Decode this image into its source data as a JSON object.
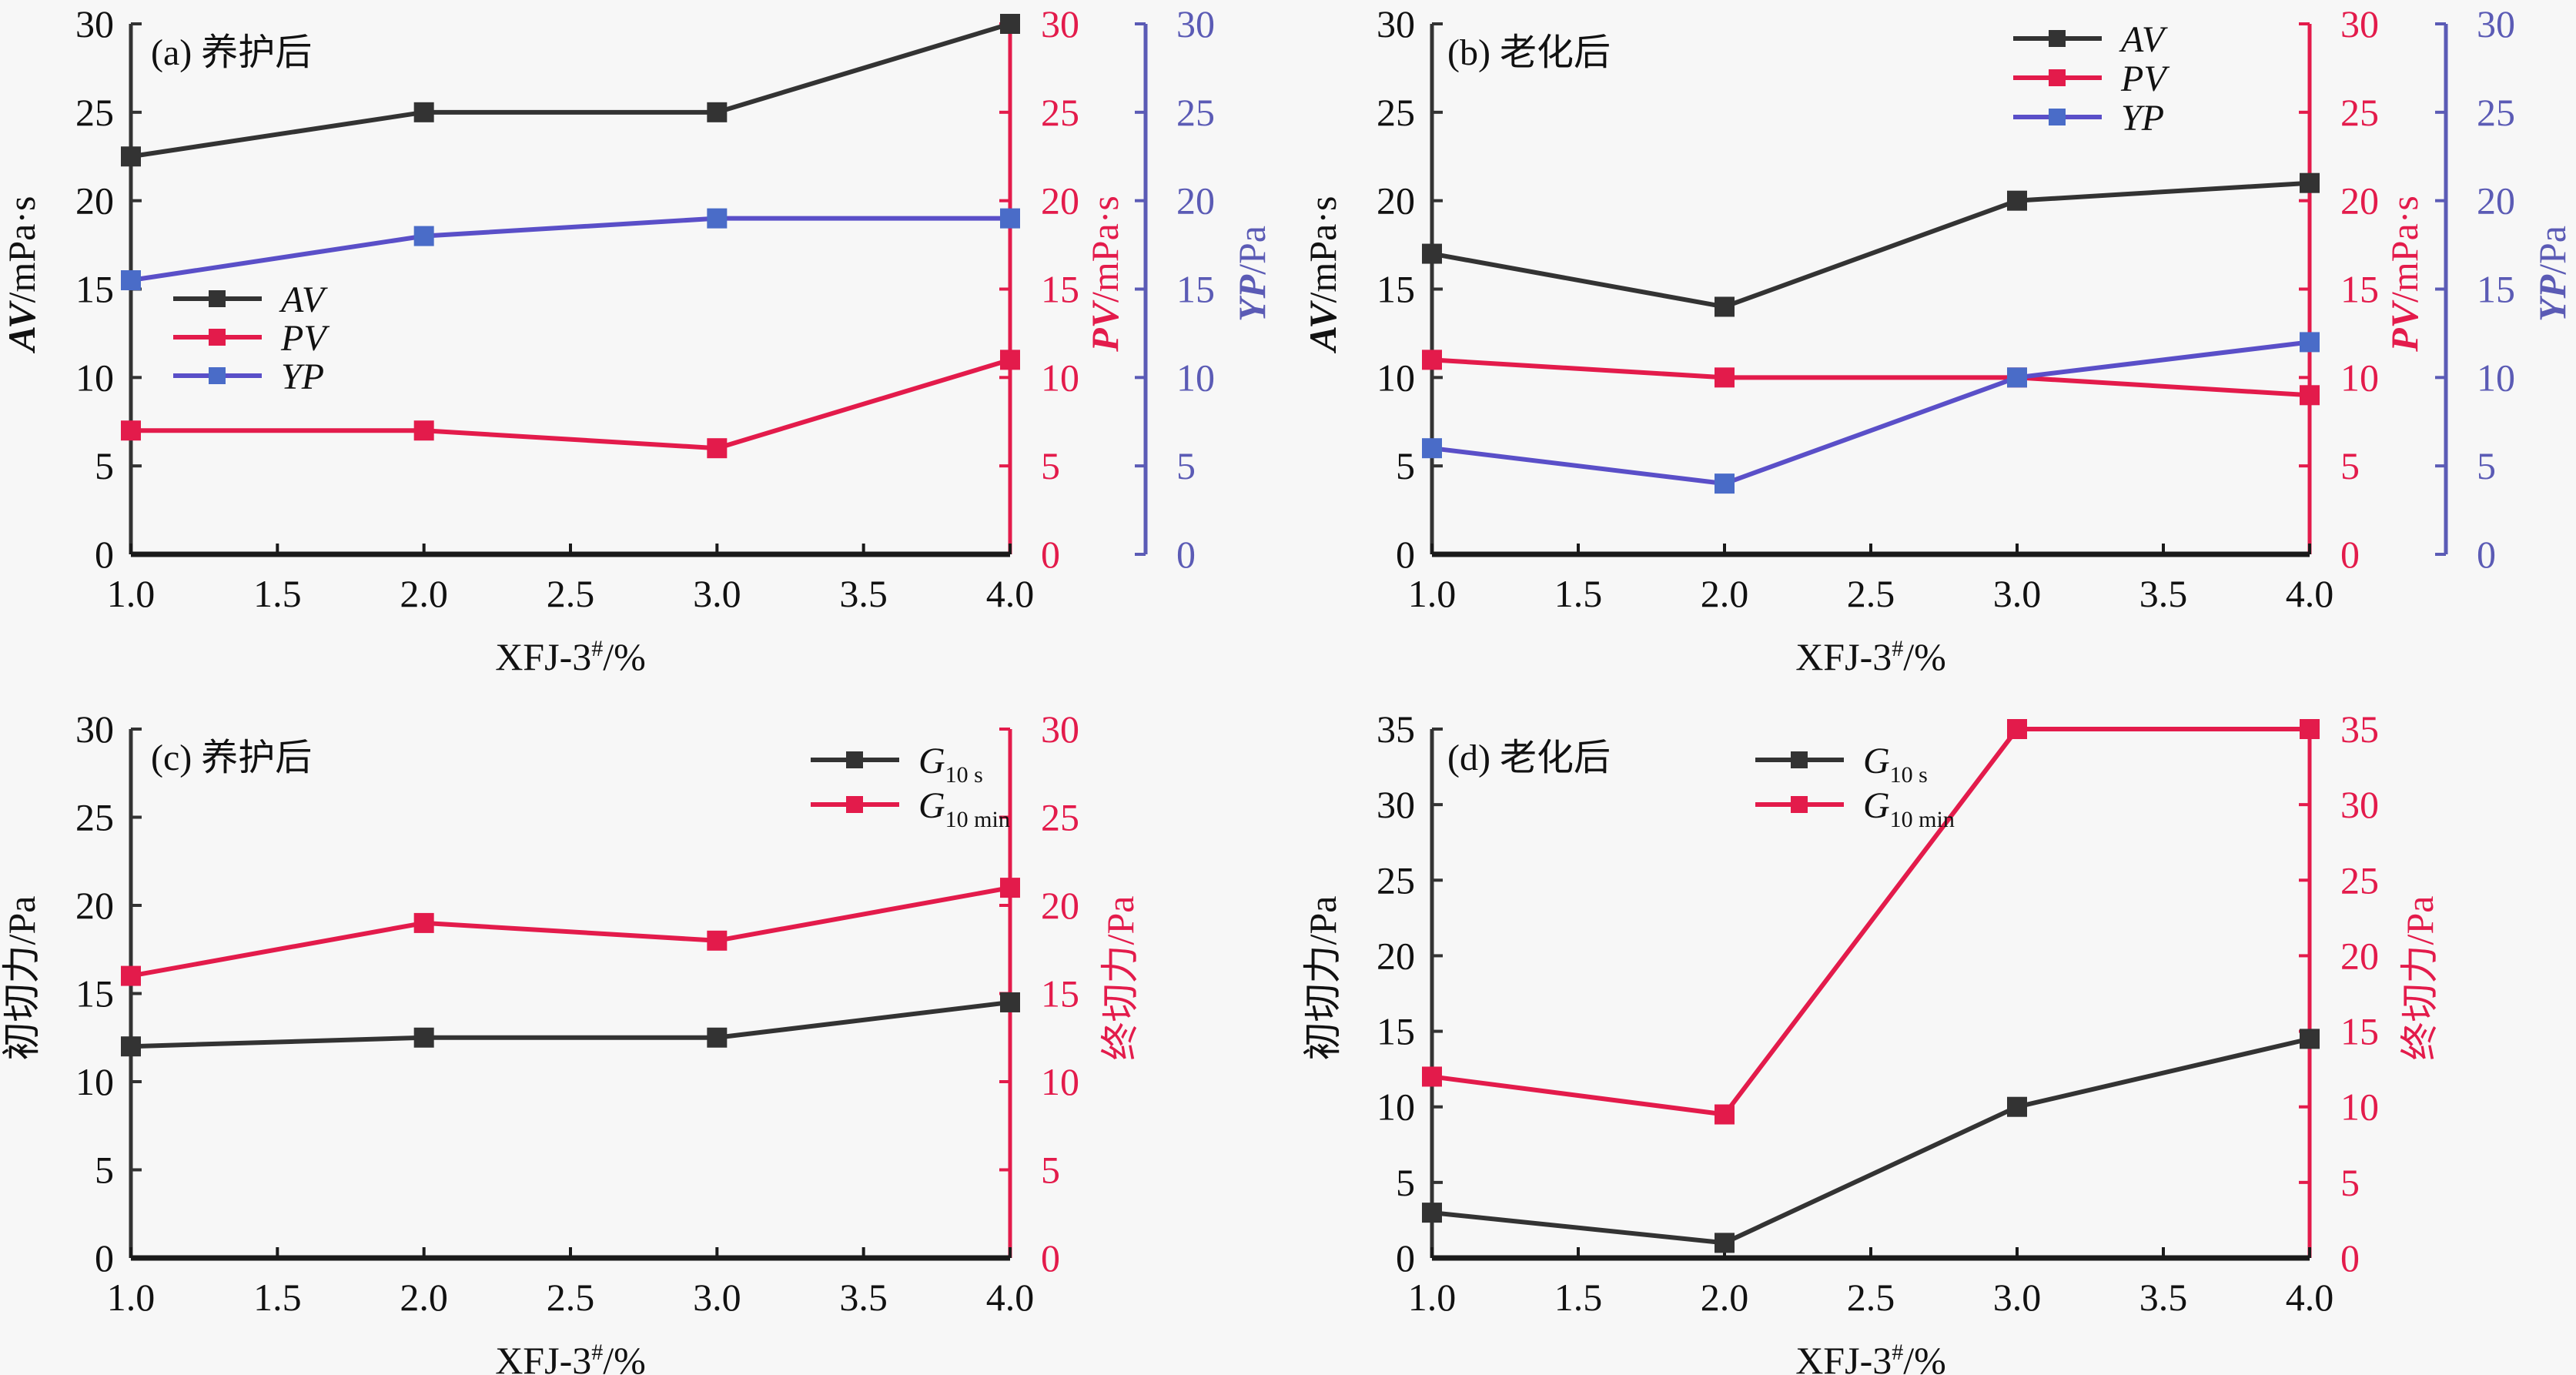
{
  "colors": {
    "black": "#333333",
    "red": "#e31b4b",
    "blue_line": "#5a4fc8",
    "blue_marker": "#4a6cc8",
    "blue_axis": "#5b5bb5",
    "text": "#111111"
  },
  "chart_data": [
    {
      "id": "a",
      "type": "line",
      "tag": "(a) 养护后",
      "xlabel": "XFJ-3#/%",
      "x": [
        1.0,
        2.0,
        3.0,
        4.0
      ],
      "xlim": [
        1.0,
        4.0
      ],
      "xticks": [
        "1.0",
        "1.5",
        "2.0",
        "2.5",
        "3.0",
        "3.5",
        "4.0"
      ],
      "axes": [
        {
          "side": "left",
          "label_italic": "AV",
          "label_rest": "/mPa·s",
          "ylim": [
            0,
            30
          ],
          "yticks": [
            0,
            5,
            10,
            15,
            20,
            25,
            30
          ],
          "color_key": "black"
        },
        {
          "side": "right1",
          "label_italic": "PV",
          "label_rest": "/mPa·s",
          "ylim": [
            0,
            30
          ],
          "yticks": [
            0,
            5,
            10,
            15,
            20,
            25,
            30
          ],
          "color_key": "red"
        },
        {
          "side": "right2",
          "label_italic": "YP",
          "label_rest": "/Pa",
          "ylim": [
            0,
            30
          ],
          "yticks": [
            0,
            5,
            10,
            15,
            20,
            25,
            30
          ],
          "color_key": "blue_axis"
        }
      ],
      "series": [
        {
          "name": "AV",
          "axis": 0,
          "values": [
            22.5,
            25,
            25,
            30
          ],
          "line_color_key": "black",
          "marker_color_key": "black"
        },
        {
          "name": "PV",
          "axis": 1,
          "values": [
            7,
            7,
            6,
            11
          ],
          "line_color_key": "red",
          "marker_color_key": "red"
        },
        {
          "name": "YP",
          "axis": 2,
          "values": [
            15.5,
            18,
            19,
            19
          ],
          "line_color_key": "blue_line",
          "marker_color_key": "blue_marker"
        }
      ],
      "legend": {
        "placement": "middle-left",
        "entries": [
          {
            "main": "AV",
            "sub": ""
          },
          {
            "main": "PV",
            "sub": ""
          },
          {
            "main": "YP",
            "sub": ""
          }
        ]
      }
    },
    {
      "id": "b",
      "type": "line",
      "tag": "(b) 老化后",
      "xlabel": "XFJ-3#/%",
      "x": [
        1.0,
        2.0,
        3.0,
        4.0
      ],
      "xlim": [
        1.0,
        4.0
      ],
      "xticks": [
        "1.0",
        "1.5",
        "2.0",
        "2.5",
        "3.0",
        "3.5",
        "4.0"
      ],
      "axes": [
        {
          "side": "left",
          "label_italic": "AV",
          "label_rest": "/mPa·s",
          "ylim": [
            0,
            30
          ],
          "yticks": [
            0,
            5,
            10,
            15,
            20,
            25,
            30
          ],
          "color_key": "black"
        },
        {
          "side": "right1",
          "label_italic": "PV",
          "label_rest": "/mPa·s",
          "ylim": [
            0,
            30
          ],
          "yticks": [
            0,
            5,
            10,
            15,
            20,
            25,
            30
          ],
          "color_key": "red"
        },
        {
          "side": "right2",
          "label_italic": "YP",
          "label_rest": "/Pa",
          "ylim": [
            0,
            30
          ],
          "yticks": [
            0,
            5,
            10,
            15,
            20,
            25,
            30
          ],
          "color_key": "blue_axis"
        }
      ],
      "series": [
        {
          "name": "AV",
          "axis": 0,
          "values": [
            17,
            14,
            20,
            21
          ],
          "line_color_key": "black",
          "marker_color_key": "black"
        },
        {
          "name": "PV",
          "axis": 1,
          "values": [
            11,
            10,
            10,
            9
          ],
          "line_color_key": "red",
          "marker_color_key": "red"
        },
        {
          "name": "YP",
          "axis": 2,
          "values": [
            6,
            4,
            10,
            12
          ],
          "line_color_key": "blue_line",
          "marker_color_key": "blue_marker"
        }
      ],
      "legend": {
        "placement": "top-right",
        "entries": [
          {
            "main": "AV",
            "sub": ""
          },
          {
            "main": "PV",
            "sub": ""
          },
          {
            "main": "YP",
            "sub": ""
          }
        ]
      }
    },
    {
      "id": "c",
      "type": "line",
      "tag": "(c) 养护后",
      "xlabel": "XFJ-3#/%",
      "x": [
        1.0,
        2.0,
        3.0,
        4.0
      ],
      "xlim": [
        1.0,
        4.0
      ],
      "xticks": [
        "1.0",
        "1.5",
        "2.0",
        "2.5",
        "3.0",
        "3.5",
        "4.0"
      ],
      "axes": [
        {
          "side": "left",
          "label_italic": "",
          "label_rest": "初切力/Pa",
          "ylim": [
            0,
            30
          ],
          "yticks": [
            0,
            5,
            10,
            15,
            20,
            25,
            30
          ],
          "color_key": "black"
        },
        {
          "side": "right1",
          "label_italic": "",
          "label_rest": "终切力/Pa",
          "ylim": [
            0,
            30
          ],
          "yticks": [
            0,
            5,
            10,
            15,
            20,
            25,
            30
          ],
          "color_key": "red"
        }
      ],
      "series": [
        {
          "name": "G10 s",
          "axis": 0,
          "values": [
            12,
            12.5,
            12.5,
            14.5
          ],
          "line_color_key": "black",
          "marker_color_key": "black"
        },
        {
          "name": "G10 min",
          "axis": 1,
          "values": [
            16,
            19,
            18,
            21
          ],
          "line_color_key": "red",
          "marker_color_key": "red"
        }
      ],
      "legend": {
        "placement": "top-right",
        "entries": [
          {
            "main": "G",
            "sub": "10 s"
          },
          {
            "main": "G",
            "sub": "10 min"
          }
        ]
      }
    },
    {
      "id": "d",
      "type": "line",
      "tag": "(d) 老化后",
      "xlabel": "XFJ-3#/%",
      "x": [
        1.0,
        2.0,
        3.0,
        4.0
      ],
      "xlim": [
        1.0,
        4.0
      ],
      "xticks": [
        "1.0",
        "1.5",
        "2.0",
        "2.5",
        "3.0",
        "3.5",
        "4.0"
      ],
      "axes": [
        {
          "side": "left",
          "label_italic": "",
          "label_rest": "初切力/Pa",
          "ylim": [
            0,
            35
          ],
          "yticks": [
            0,
            5,
            10,
            15,
            20,
            25,
            30,
            35
          ],
          "color_key": "black"
        },
        {
          "side": "right1",
          "label_italic": "",
          "label_rest": "终切力/Pa",
          "ylim": [
            0,
            35
          ],
          "yticks": [
            0,
            5,
            10,
            15,
            20,
            25,
            30,
            35
          ],
          "color_key": "red"
        }
      ],
      "series": [
        {
          "name": "G10 s",
          "axis": 0,
          "values": [
            3,
            1,
            10,
            14.5
          ],
          "line_color_key": "black",
          "marker_color_key": "black"
        },
        {
          "name": "G10 min",
          "axis": 1,
          "values": [
            12,
            9.5,
            35,
            35
          ],
          "line_color_key": "red",
          "marker_color_key": "red"
        }
      ],
      "legend": {
        "placement": "top-center",
        "entries": [
          {
            "main": "G",
            "sub": "10 s"
          },
          {
            "main": "G",
            "sub": "10 min"
          }
        ]
      }
    }
  ]
}
